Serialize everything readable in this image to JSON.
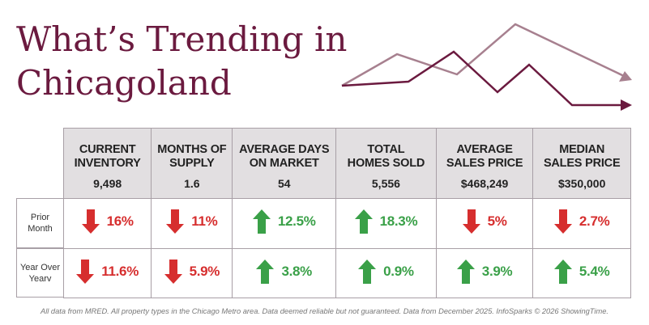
{
  "title": {
    "line1": "What’s Trending in",
    "line2": "Chicagoland"
  },
  "colors": {
    "title": "#6b1a3f",
    "up": "#3aa048",
    "down": "#d62e2e",
    "header_bg": "#e2dfe1",
    "deco_dark": "#6b1a3f",
    "deco_light": "#a7808f"
  },
  "columns": [
    {
      "label1": "CURRENT",
      "label2": "INVENTORY",
      "value": "9,498"
    },
    {
      "label1": "MONTHS OF",
      "label2": "SUPPLY",
      "value": "1.6"
    },
    {
      "label1": "AVERAGE DAYS",
      "label2": "ON MARKET",
      "value": "54"
    },
    {
      "label1": "TOTAL",
      "label2": "HOMES SOLD",
      "value": "5,556"
    },
    {
      "label1": "AVERAGE",
      "label2": "SALES PRICE",
      "value": "$468,249"
    },
    {
      "label1": "MEDIAN",
      "label2": "SALES PRICE",
      "value": "$350,000"
    }
  ],
  "rows": [
    {
      "label1": "Prior",
      "label2": "Month",
      "changes": [
        {
          "dir": "down",
          "pct": "16%"
        },
        {
          "dir": "down",
          "pct": "11%"
        },
        {
          "dir": "up",
          "pct": "12.5%"
        },
        {
          "dir": "up",
          "pct": "18.3%"
        },
        {
          "dir": "down",
          "pct": "5%"
        },
        {
          "dir": "down",
          "pct": "2.7%"
        }
      ]
    },
    {
      "label1": "Year Over",
      "label2": "Yearv",
      "changes": [
        {
          "dir": "down",
          "pct": "11.6%"
        },
        {
          "dir": "down",
          "pct": "5.9%"
        },
        {
          "dir": "up",
          "pct": "3.8%"
        },
        {
          "dir": "up",
          "pct": "0.9%"
        },
        {
          "dir": "up",
          "pct": "3.9%"
        },
        {
          "dir": "up",
          "pct": "5.4%"
        }
      ]
    }
  ],
  "footer": "All data from MRED. All property types in the Chicago Metro area. Data deemed reliable but not guaranteed. Data from December 2025. InfoSparks © 2026 ShowingTime."
}
